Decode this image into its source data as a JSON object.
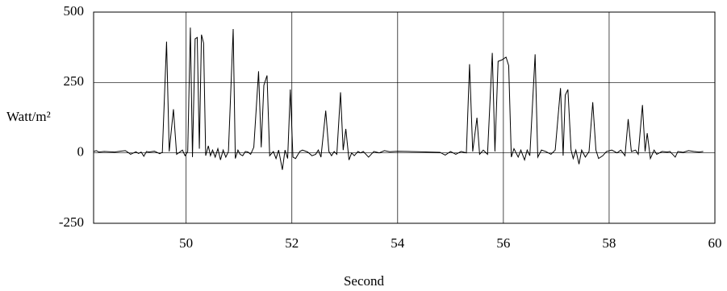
{
  "chart_data": {
    "type": "line",
    "xlabel": "Second",
    "ylabel": "Watt/m²",
    "xlim": [
      48.25,
      60
    ],
    "xticks": [
      50,
      52,
      54,
      56,
      58,
      60
    ],
    "ylim": [
      -250,
      500
    ],
    "yticks": [
      -250,
      0,
      250,
      500
    ],
    "grid": true,
    "color": "#000000",
    "x": [
      48.25,
      48.3,
      48.35,
      48.45,
      48.55,
      48.65,
      48.75,
      48.85,
      48.9,
      48.95,
      49.05,
      49.1,
      49.15,
      49.2,
      49.25,
      49.3,
      49.4,
      49.5,
      49.55,
      49.63,
      49.68,
      49.76,
      49.82,
      49.88,
      49.93,
      49.98,
      50.03,
      50.08,
      50.12,
      50.17,
      50.21,
      50.25,
      50.29,
      50.33,
      50.37,
      50.42,
      50.46,
      50.5,
      50.55,
      50.6,
      50.65,
      50.7,
      50.75,
      50.8,
      50.89,
      50.93,
      50.98,
      51.02,
      51.07,
      51.12,
      51.17,
      51.22,
      51.28,
      51.37,
      51.42,
      51.47,
      51.53,
      51.58,
      51.65,
      51.7,
      51.75,
      51.82,
      51.87,
      51.92,
      51.97,
      52.02,
      52.07,
      52.15,
      52.2,
      52.3,
      52.38,
      52.45,
      52.5,
      52.55,
      52.64,
      52.7,
      52.75,
      52.8,
      52.85,
      52.92,
      52.97,
      53.02,
      53.08,
      53.13,
      53.18,
      53.25,
      53.3,
      53.35,
      53.45,
      53.5,
      53.55,
      53.65,
      53.75,
      53.85,
      54,
      54.2,
      54.4,
      54.6,
      54.8,
      54.9,
      55,
      55.1,
      55.2,
      55.3,
      55.36,
      55.42,
      55.5,
      55.55,
      55.62,
      55.7,
      55.79,
      55.84,
      55.9,
      55.97,
      56.05,
      56.1,
      56.15,
      56.2,
      56.28,
      56.33,
      56.4,
      56.45,
      56.5,
      56.6,
      56.65,
      56.72,
      56.8,
      56.9,
      56.98,
      57.08,
      57.13,
      57.17,
      57.22,
      57.28,
      57.32,
      57.37,
      57.43,
      57.48,
      57.55,
      57.62,
      57.69,
      57.75,
      57.8,
      57.88,
      57.95,
      58.05,
      58.15,
      58.22,
      58.3,
      58.36,
      58.42,
      58.5,
      58.55,
      58.63,
      58.68,
      58.72,
      58.78,
      58.85,
      58.9,
      59,
      59.1,
      59.15,
      59.25,
      59.3,
      59.4,
      59.5,
      59.6,
      59.7,
      59.78
    ],
    "values": [
      5,
      8,
      3,
      5,
      4,
      3,
      6,
      8,
      2,
      -5,
      4,
      -2,
      3,
      -12,
      5,
      3,
      6,
      -3,
      2,
      395,
      5,
      155,
      -5,
      3,
      10,
      -10,
      5,
      445,
      -15,
      405,
      410,
      15,
      420,
      390,
      -10,
      25,
      -10,
      10,
      -15,
      15,
      -25,
      10,
      -15,
      5,
      440,
      -20,
      10,
      -5,
      -10,
      5,
      3,
      -5,
      20,
      290,
      20,
      240,
      275,
      -10,
      5,
      -20,
      10,
      -60,
      10,
      -20,
      225,
      -15,
      -20,
      5,
      10,
      3,
      -10,
      -5,
      10,
      -15,
      150,
      5,
      -10,
      5,
      -5,
      215,
      10,
      85,
      -25,
      0,
      -10,
      5,
      0,
      5,
      -15,
      -5,
      5,
      0,
      8,
      4,
      6,
      5,
      4,
      3,
      2,
      -8,
      5,
      -5,
      5,
      0,
      315,
      5,
      125,
      -5,
      10,
      -5,
      355,
      5,
      325,
      330,
      340,
      310,
      -15,
      15,
      -15,
      10,
      -25,
      10,
      -10,
      350,
      -15,
      10,
      5,
      -5,
      10,
      230,
      -10,
      205,
      225,
      10,
      -20,
      10,
      -40,
      10,
      -15,
      5,
      180,
      10,
      -20,
      -10,
      5,
      10,
      0,
      10,
      -10,
      120,
      5,
      10,
      -5,
      170,
      5,
      70,
      -20,
      10,
      -5,
      5,
      3,
      5,
      -15,
      5,
      2,
      8,
      5,
      3,
      5
    ]
  }
}
